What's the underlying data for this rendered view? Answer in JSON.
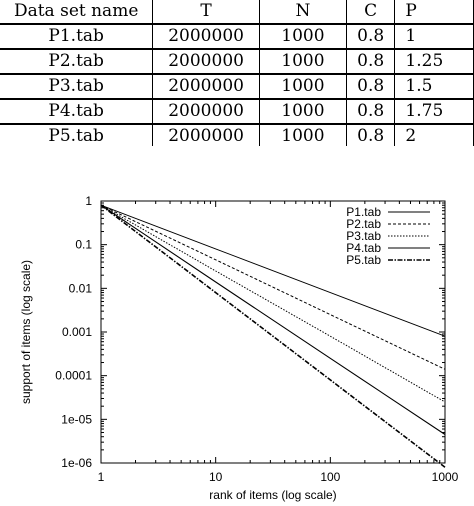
{
  "table": {
    "headers": [
      "Data set name",
      "T",
      "N",
      "C",
      "P"
    ],
    "rows": [
      [
        "P1.tab",
        "2000000",
        "1000",
        "0.8",
        "1"
      ],
      [
        "P2.tab",
        "2000000",
        "1000",
        "0.8",
        "1.25"
      ],
      [
        "P3.tab",
        "2000000",
        "1000",
        "0.8",
        "1.5"
      ],
      [
        "P4.tab",
        "2000000",
        "1000",
        "0.8",
        "1.75"
      ],
      [
        "P5.tab",
        "2000000",
        "1000",
        "0.8",
        "2"
      ]
    ]
  },
  "chart_data": {
    "type": "line",
    "xlabel": "rank of items (log scale)",
    "ylabel": "support of items (log scale)",
    "xscale": "log",
    "yscale": "log",
    "xlim": [
      1,
      1000
    ],
    "ylim": [
      1e-06,
      1
    ],
    "xticks": [
      "1",
      "10",
      "100",
      "1000"
    ],
    "yticks": [
      "1",
      "0.1",
      "0.01",
      "0.001",
      "0.0001",
      "1e-05",
      "1e-06"
    ],
    "legend_position": "top-right",
    "series": [
      {
        "name": "P1.tab",
        "x": [
          1,
          10,
          100,
          1000
        ],
        "y": [
          0.8,
          0.08,
          0.008,
          0.0008
        ],
        "style": "solid"
      },
      {
        "name": "P2.tab",
        "x": [
          1,
          10,
          100,
          1000
        ],
        "y": [
          0.8,
          0.045,
          0.0025,
          0.00014
        ],
        "style": "dashed"
      },
      {
        "name": "P3.tab",
        "x": [
          1,
          10,
          100,
          1000
        ],
        "y": [
          0.8,
          0.025,
          0.0008,
          2.5e-05
        ],
        "style": "dotted"
      },
      {
        "name": "P4.tab",
        "x": [
          1,
          10,
          100,
          1000
        ],
        "y": [
          0.8,
          0.014,
          0.00025,
          4.5e-06
        ],
        "style": "solid-thin"
      },
      {
        "name": "P5.tab",
        "x": [
          1,
          10,
          100,
          1000
        ],
        "y": [
          0.8,
          0.008,
          8e-05,
          8e-07
        ],
        "style": "dash-dot"
      }
    ]
  }
}
